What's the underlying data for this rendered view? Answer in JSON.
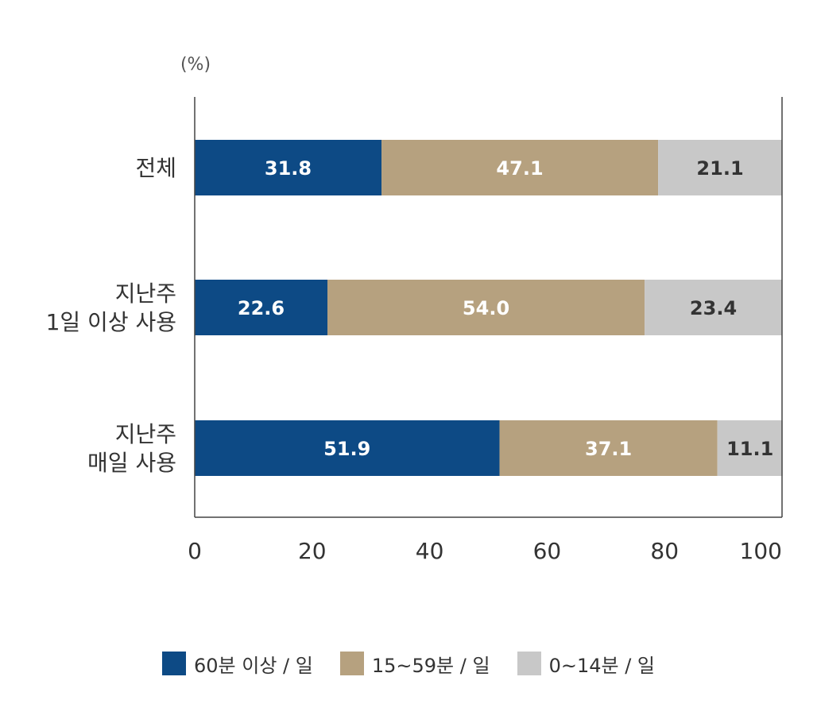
{
  "chart_data": {
    "type": "bar",
    "orientation": "horizontal",
    "stacked": true,
    "unit_label": "(%)",
    "categories": [
      [
        "전체"
      ],
      [
        "지난주",
        "1일 이상 사용"
      ],
      [
        "지난주",
        "매일 사용"
      ]
    ],
    "series": [
      {
        "name": "60분 이상 / 일",
        "color": "#0d4a85",
        "label_color": "#ffffff",
        "values": [
          31.8,
          22.6,
          51.9
        ]
      },
      {
        "name": "15~59분 / 일",
        "color": "#b6a17f",
        "label_color": "#ffffff",
        "values": [
          47.1,
          54.0,
          37.1
        ]
      },
      {
        "name": "0~14분 / 일",
        "color": "#c8c8c8",
        "label_color": "#333333",
        "values": [
          21.1,
          23.4,
          11.1
        ]
      }
    ],
    "xlim": [
      0,
      100
    ],
    "xticks": [
      0,
      20,
      40,
      60,
      80,
      100
    ],
    "grid": false,
    "legend_position": "bottom"
  }
}
